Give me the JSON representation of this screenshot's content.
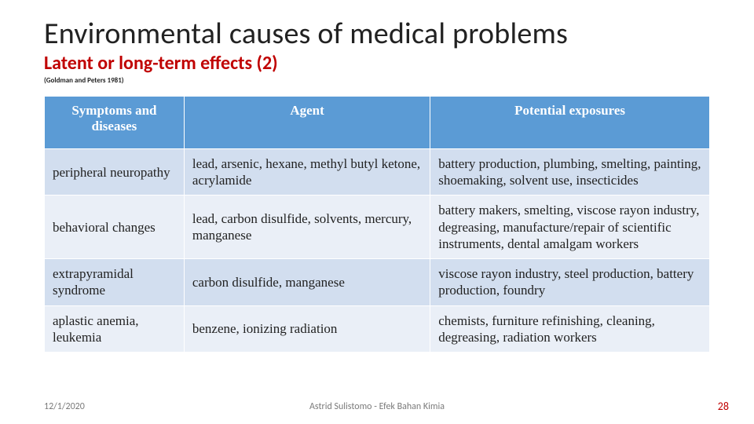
{
  "title": "Environmental causes of medical problems",
  "subtitle": "Latent or long-term effects (2)",
  "citation": "(Goldman and Peters 1981)",
  "table": {
    "columns": [
      "Symptoms and diseases",
      "Agent",
      "Potential exposures"
    ],
    "rows": [
      {
        "symptom": "peripheral neuropathy",
        "agent": "lead, arsenic, hexane, methyl butyl ketone, acrylamide",
        "exposure": "battery production, plumbing, smelting, painting, shoemaking, solvent use, insecticides"
      },
      {
        "symptom": "behavioral changes",
        "agent": "lead, carbon disulfide, solvents, mercury, manganese",
        "exposure": "battery makers, smelting, viscose rayon industry, degreasing, manufacture/repair of scientific instruments, dental amalgam workers"
      },
      {
        "symptom": "extrapyramidal syndrome",
        "agent": "carbon disulfide, manganese",
        "exposure": "viscose rayon industry, steel production, battery production, foundry"
      },
      {
        "symptom": "aplastic anemia, leukemia",
        "agent": "benzene, ionizing radiation",
        "exposure": "chemists, furniture refinishing, cleaning, degreasing, radiation workers"
      }
    ]
  },
  "footer": {
    "date": "12/1/2020",
    "center": "Astrid Sulistomo - Efek Bahan Kimia",
    "page": "28"
  },
  "colors": {
    "title": "#222222",
    "subtitle": "#c00000",
    "header_bg": "#5b9bd5",
    "header_text": "#ffffff",
    "band1": "#d2deef",
    "band2": "#eaeff7",
    "footer_text": "#7a7a7a",
    "page_number": "#c00000"
  }
}
